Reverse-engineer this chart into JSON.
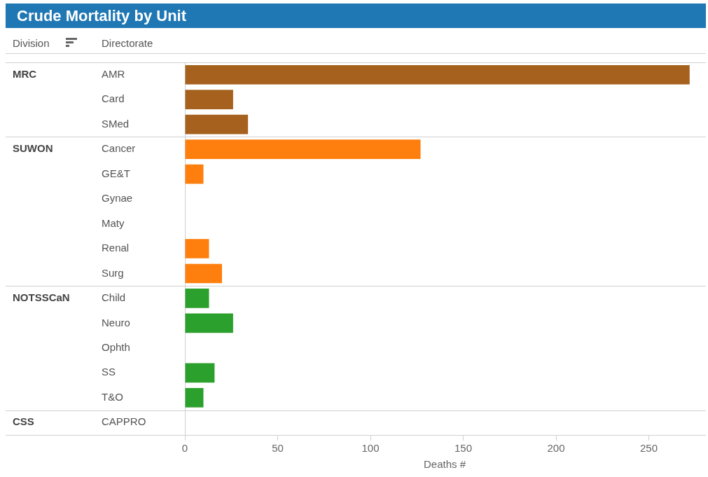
{
  "chart_data": {
    "type": "bar",
    "orientation": "horizontal",
    "title": "Crude Mortality by Unit",
    "legend_title": "Division",
    "ylabel": "Directorate",
    "xlabel": "Deaths #",
    "categories": [
      "AMR",
      "Card",
      "SMed",
      "Cancer",
      "GE&T",
      "Gynae",
      "Maty",
      "Renal",
      "Surg",
      "Child",
      "Neuro",
      "Ophth",
      "SS",
      "T&O",
      "CAPPRO"
    ],
    "series": [
      {
        "color": "#a6611e",
        "values": [
          272,
          26,
          34,
          null,
          null,
          null,
          null,
          null,
          null,
          null,
          null,
          null,
          null,
          null,
          null
        ]
      },
      {
        "color": "#ff7f0e",
        "values": [
          null,
          null,
          null,
          127,
          10,
          0,
          0,
          13,
          20,
          null,
          null,
          null,
          null,
          null,
          null
        ]
      },
      {
        "color": "#2ca02c",
        "values": [
          null,
          null,
          null,
          null,
          null,
          null,
          null,
          null,
          null,
          13,
          26,
          0,
          16,
          10,
          null
        ]
      },
      {
        "values": [
          null,
          null,
          null,
          null,
          null,
          null,
          null,
          null,
          null,
          null,
          null,
          null,
          null,
          null,
          0
        ]
      }
    ],
    "annotations": [
      "MRC",
      "SUWON",
      "NOTSSCaN",
      "CSS"
    ],
    "xlim": [
      0,
      280
    ],
    "xticks": [
      0,
      50,
      100,
      150,
      200,
      250
    ],
    "grid": false,
    "legend": false
  }
}
